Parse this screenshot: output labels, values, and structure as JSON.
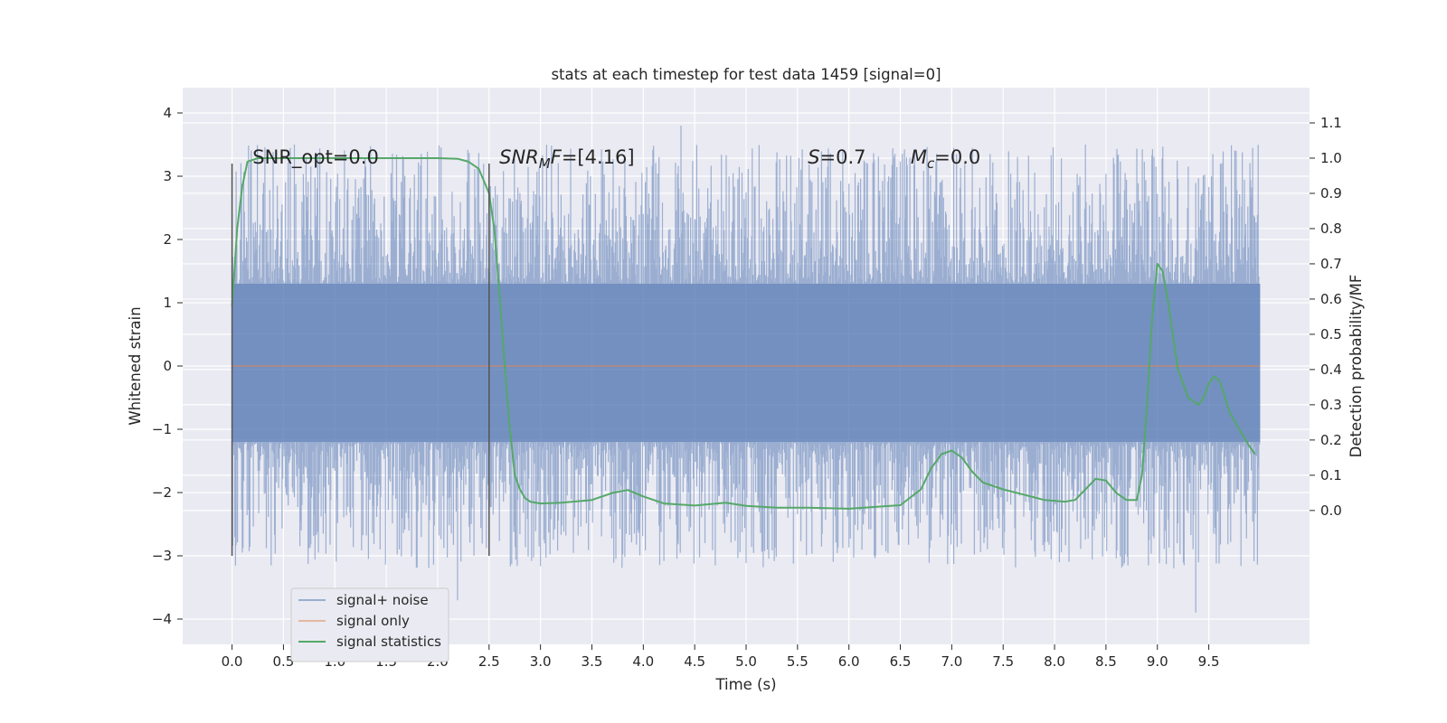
{
  "chart_data": {
    "type": "line",
    "title": "stats at each timestep for test data 1459 [signal=0]",
    "xlabel": "Time (s)",
    "ylabel": "Whitened strain",
    "ylabel_right": "Detection probability/MF",
    "xlim": [
      -0.48,
      10.48
    ],
    "ylim": [
      -4.4,
      4.4
    ],
    "ylim_right": [
      -0.38,
      1.2
    ],
    "grid": true,
    "legend_position": "lower-left",
    "x_ticks": [
      0.0,
      0.5,
      1.0,
      1.5,
      2.0,
      2.5,
      3.0,
      3.5,
      4.0,
      4.5,
      5.0,
      5.5,
      6.0,
      6.5,
      7.0,
      7.5,
      8.0,
      8.5,
      9.0,
      9.5
    ],
    "x_tick_labels": [
      "0.0",
      "0.5",
      "1.0",
      "1.5",
      "2.0",
      "2.5",
      "3.0",
      "3.5",
      "4.0",
      "4.5",
      "5.0",
      "5.5",
      "6.0",
      "6.5",
      "7.0",
      "7.5",
      "8.0",
      "8.5",
      "9.0",
      "9.5"
    ],
    "y_ticks": [
      -4,
      -3,
      -2,
      -1,
      0,
      1,
      2,
      3,
      4
    ],
    "y_tick_labels": [
      "−4",
      "−3",
      "−2",
      "−1",
      "0",
      "1",
      "2",
      "3",
      "4"
    ],
    "y_ticks_right": [
      0.0,
      0.1,
      0.2,
      0.3,
      0.4,
      0.5,
      0.6,
      0.7,
      0.8,
      0.9,
      1.0,
      1.1
    ],
    "y_tick_labels_right": [
      "0.0",
      "0.1",
      "0.2",
      "0.3",
      "0.4",
      "0.5",
      "0.6",
      "0.7",
      "0.8",
      "0.9",
      "1.0",
      "1.1"
    ],
    "annotations": [
      {
        "id": "snr-opt",
        "x": 0.2,
        "y": 3.2,
        "parts": [
          {
            "text": "SNR_opt=0.0",
            "style": "normal"
          }
        ]
      },
      {
        "id": "snr-mf",
        "x": 2.6,
        "y": 3.2,
        "parts": [
          {
            "text": "SNR",
            "style": "italic"
          },
          {
            "text": "M",
            "style": "italic-sub"
          },
          {
            "text": "F",
            "style": "italic"
          },
          {
            "text": "=[4.16]",
            "style": "normal"
          }
        ]
      },
      {
        "id": "s-value",
        "x": 5.6,
        "y": 3.2,
        "parts": [
          {
            "text": "S",
            "style": "italic"
          },
          {
            "text": "=0.7",
            "style": "normal"
          }
        ]
      },
      {
        "id": "mc-value",
        "x": 6.6,
        "y": 3.2,
        "parts": [
          {
            "text": "M",
            "style": "italic"
          },
          {
            "text": "c",
            "style": "italic-sub"
          },
          {
            "text": "=0.0",
            "style": "normal"
          }
        ]
      }
    ],
    "vertical_lines": [
      {
        "x": 0.0,
        "ymin": -3.0,
        "ymax": 3.2,
        "color": "#555555"
      },
      {
        "x": 2.5,
        "ymin": -3.0,
        "ymax": 3.2,
        "color": "#555555"
      }
    ],
    "series": [
      {
        "name": "signal+ noise",
        "color": "#4c72b0",
        "opacity": 0.5,
        "axis": "left",
        "kind": "noise",
        "x_range": [
          0.0,
          10.0
        ],
        "band": [
          -1.2,
          1.3
        ],
        "min": -3.9,
        "max": 4.05
      },
      {
        "name": "signal only",
        "color": "#dd8452",
        "opacity": 0.5,
        "axis": "left",
        "kind": "line",
        "x": [
          0.0,
          10.0
        ],
        "y": [
          0.0,
          0.0
        ]
      },
      {
        "name": "signal statistics",
        "color": "#55a868",
        "opacity": 1,
        "axis": "right",
        "kind": "line",
        "x": [
          0.0,
          0.05,
          0.1,
          0.15,
          0.25,
          0.5,
          1.0,
          1.5,
          2.0,
          2.2,
          2.3,
          2.4,
          2.5,
          2.55,
          2.6,
          2.65,
          2.7,
          2.75,
          2.8,
          2.85,
          2.9,
          3.0,
          3.2,
          3.5,
          3.7,
          3.85,
          4.0,
          4.2,
          4.5,
          4.8,
          5.0,
          5.3,
          5.6,
          6.0,
          6.5,
          6.7,
          6.8,
          6.9,
          7.0,
          7.1,
          7.2,
          7.3,
          7.5,
          7.7,
          7.9,
          8.1,
          8.2,
          8.3,
          8.4,
          8.5,
          8.6,
          8.7,
          8.8,
          8.85,
          8.9,
          8.95,
          9.0,
          9.05,
          9.1,
          9.2,
          9.3,
          9.4,
          9.45,
          9.5,
          9.55,
          9.6,
          9.65,
          9.7,
          9.8,
          9.9,
          9.95
        ],
        "y": [
          0.58,
          0.8,
          0.92,
          0.99,
          1.0,
          1.0,
          1.0,
          1.0,
          1.0,
          0.998,
          0.99,
          0.97,
          0.9,
          0.8,
          0.62,
          0.42,
          0.24,
          0.1,
          0.06,
          0.035,
          0.025,
          0.02,
          0.022,
          0.03,
          0.05,
          0.058,
          0.04,
          0.02,
          0.014,
          0.022,
          0.013,
          0.008,
          0.008,
          0.005,
          0.015,
          0.06,
          0.12,
          0.16,
          0.17,
          0.15,
          0.11,
          0.08,
          0.06,
          0.045,
          0.03,
          0.025,
          0.03,
          0.06,
          0.09,
          0.085,
          0.05,
          0.03,
          0.03,
          0.1,
          0.3,
          0.55,
          0.7,
          0.68,
          0.6,
          0.4,
          0.32,
          0.3,
          0.32,
          0.36,
          0.38,
          0.37,
          0.33,
          0.28,
          0.23,
          0.18,
          0.16
        ]
      }
    ],
    "legend": [
      {
        "label": "signal+ noise",
        "color": "#4c72b0",
        "opacity": 0.5
      },
      {
        "label": "signal only",
        "color": "#dd8452",
        "opacity": 0.5
      },
      {
        "label": "signal statistics",
        "color": "#55a868",
        "opacity": 1
      }
    ]
  }
}
